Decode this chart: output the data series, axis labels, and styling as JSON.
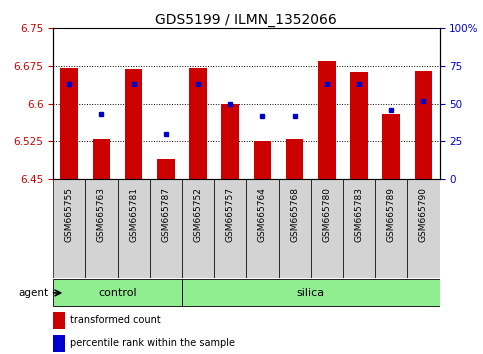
{
  "title": "GDS5199 / ILMN_1352066",
  "samples": [
    "GSM665755",
    "GSM665763",
    "GSM665781",
    "GSM665787",
    "GSM665752",
    "GSM665757",
    "GSM665764",
    "GSM665768",
    "GSM665780",
    "GSM665783",
    "GSM665789",
    "GSM665790"
  ],
  "transformed_count": [
    6.67,
    6.53,
    6.668,
    6.49,
    6.67,
    6.6,
    6.525,
    6.53,
    6.685,
    6.663,
    6.58,
    6.665
  ],
  "percentile_rank": [
    63,
    43,
    63,
    30,
    63,
    50,
    42,
    42,
    63,
    63,
    46,
    52
  ],
  "ylim_left": [
    6.45,
    6.75
  ],
  "ylim_right": [
    0,
    100
  ],
  "yticks_left": [
    6.45,
    6.525,
    6.6,
    6.675,
    6.75
  ],
  "yticks_right": [
    0,
    25,
    50,
    75,
    100
  ],
  "ytick_labels_left": [
    "6.45",
    "6.525",
    "6.6",
    "6.675",
    "6.75"
  ],
  "ytick_labels_right": [
    "0",
    "25",
    "50",
    "75",
    "100%"
  ],
  "gridlines_at": [
    6.525,
    6.6,
    6.675
  ],
  "bar_bottom": 6.45,
  "bar_color": "#cc0000",
  "dot_color": "#0000cc",
  "control_count": 4,
  "silica_count": 8,
  "control_label": "control",
  "silica_label": "silica",
  "agent_label": "agent",
  "legend_red_label": "transformed count",
  "legend_blue_label": "percentile rank within the sample",
  "group_color": "#90ee90",
  "sample_bg_color": "#d3d3d3",
  "title_fontsize": 10,
  "tick_fontsize": 7.5,
  "sample_fontsize": 6.5,
  "bar_width": 0.55
}
